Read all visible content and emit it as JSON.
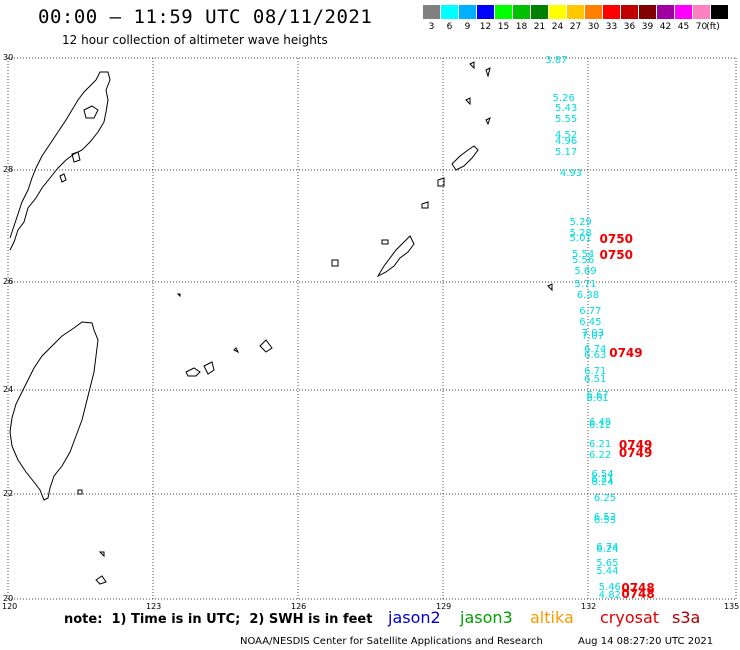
{
  "header": {
    "title": "00:00 – 11:59 UTC 08/11/2021",
    "subtitle": "12 hour collection of altimeter wave heights"
  },
  "legend": {
    "unit": "(ft)",
    "items": [
      {
        "label": "3",
        "color": "#808080"
      },
      {
        "label": "6",
        "color": "#00ffff"
      },
      {
        "label": "9",
        "color": "#00b0ff"
      },
      {
        "label": "12",
        "color": "#0000ff"
      },
      {
        "label": "15",
        "color": "#00ff00"
      },
      {
        "label": "18",
        "color": "#00c000"
      },
      {
        "label": "21",
        "color": "#008000"
      },
      {
        "label": "24",
        "color": "#ffff00"
      },
      {
        "label": "27",
        "color": "#ffc800"
      },
      {
        "label": "30",
        "color": "#ff8000"
      },
      {
        "label": "33",
        "color": "#ff0000"
      },
      {
        "label": "36",
        "color": "#c00000"
      },
      {
        "label": "39",
        "color": "#800000"
      },
      {
        "label": "42",
        "color": "#a000a0"
      },
      {
        "label": "45",
        "color": "#ff00ff"
      },
      {
        "label": "70",
        "color": "#ff80c0"
      },
      {
        "label": "",
        "color": "#000000"
      }
    ]
  },
  "axes": {
    "lat_ticks": [
      "30",
      "28",
      "26",
      "24",
      "22",
      "20"
    ],
    "lon_ticks": [
      "120",
      "123",
      "126",
      "129",
      "132",
      "135"
    ]
  },
  "observations": [
    {
      "v": "3.87",
      "lon": 131.4,
      "lat": 29.95
    },
    {
      "v": "5.26",
      "lon": 131.55,
      "lat": 29.25
    },
    {
      "v": "5.43",
      "lon": 131.6,
      "lat": 29.05
    },
    {
      "v": "5.55",
      "lon": 131.6,
      "lat": 28.85
    },
    {
      "v": "4.52",
      "lon": 131.6,
      "lat": 28.55
    },
    {
      "v": "4.96",
      "lon": 131.6,
      "lat": 28.45
    },
    {
      "v": "5.17",
      "lon": 131.6,
      "lat": 28.25
    },
    {
      "v": "4.93",
      "lon": 131.7,
      "lat": 27.85
    },
    {
      "v": "5.29",
      "lon": 131.9,
      "lat": 26.95
    },
    {
      "v": "5.28",
      "lon": 131.9,
      "lat": 26.75
    },
    {
      "v": "5.01",
      "lon": 131.9,
      "lat": 26.65
    },
    {
      "v": "5.54",
      "lon": 131.95,
      "lat": 26.35
    },
    {
      "v": "5.56",
      "lon": 131.95,
      "lat": 26.25
    },
    {
      "v": "5.69",
      "lon": 132.0,
      "lat": 26.05
    },
    {
      "v": "5.71",
      "lon": 132.0,
      "lat": 25.8
    },
    {
      "v": "6.38",
      "lon": 132.05,
      "lat": 25.6
    },
    {
      "v": "6.77",
      "lon": 132.1,
      "lat": 25.3
    },
    {
      "v": "6.45",
      "lon": 132.1,
      "lat": 25.1
    },
    {
      "v": "7.03",
      "lon": 132.15,
      "lat": 24.9
    },
    {
      "v": "7.07",
      "lon": 132.15,
      "lat": 24.85
    },
    {
      "v": "6.74",
      "lon": 132.2,
      "lat": 24.6
    },
    {
      "v": "6.63",
      "lon": 132.2,
      "lat": 24.5
    },
    {
      "v": "6.71",
      "lon": 132.2,
      "lat": 24.2
    },
    {
      "v": "6.51",
      "lon": 132.2,
      "lat": 24.05
    },
    {
      "v": "6.67",
      "lon": 132.25,
      "lat": 23.75
    },
    {
      "v": "6.61",
      "lon": 132.25,
      "lat": 23.7
    },
    {
      "v": "6.48",
      "lon": 132.3,
      "lat": 23.25
    },
    {
      "v": "6.12",
      "lon": 132.3,
      "lat": 23.2
    },
    {
      "v": "6.21",
      "lon": 132.3,
      "lat": 22.85
    },
    {
      "v": "6.22",
      "lon": 132.3,
      "lat": 22.65
    },
    {
      "v": "6.54",
      "lon": 132.35,
      "lat": 22.3
    },
    {
      "v": "6.21",
      "lon": 132.35,
      "lat": 22.2
    },
    {
      "v": "6.24",
      "lon": 132.35,
      "lat": 22.15
    },
    {
      "v": "6.25",
      "lon": 132.4,
      "lat": 21.85
    },
    {
      "v": "6.52",
      "lon": 132.4,
      "lat": 21.5
    },
    {
      "v": "6.53",
      "lon": 132.4,
      "lat": 21.45
    },
    {
      "v": "6.74",
      "lon": 132.45,
      "lat": 20.95
    },
    {
      "v": "6.24",
      "lon": 132.45,
      "lat": 20.9
    },
    {
      "v": "5.65",
      "lon": 132.45,
      "lat": 20.65
    },
    {
      "v": "5.44",
      "lon": 132.45,
      "lat": 20.5
    },
    {
      "v": "5.46",
      "lon": 132.5,
      "lat": 20.2
    },
    {
      "v": "4.82",
      "lon": 132.5,
      "lat": 20.05
    }
  ],
  "pass_times": [
    {
      "t": "0750",
      "lon": 132.6,
      "lat": 26.65
    },
    {
      "t": "0750",
      "lon": 132.6,
      "lat": 26.35
    },
    {
      "t": "0749",
      "lon": 132.8,
      "lat": 24.55
    },
    {
      "t": "0749",
      "lon": 133.0,
      "lat": 22.85
    },
    {
      "t": "0749",
      "lon": 133.0,
      "lat": 22.7
    },
    {
      "t": "0748",
      "lon": 133.05,
      "lat": 20.2
    },
    {
      "t": "0748",
      "lon": 133.05,
      "lat": 20.1
    }
  ],
  "footer": {
    "note": "note:  1) Time is in UTC;  2) SWH is in feet",
    "satellites": [
      {
        "name": "jason2",
        "color": "#0000cc"
      },
      {
        "name": "jason3",
        "color": "#00a000"
      },
      {
        "name": "altika",
        "color": "#ff9900"
      },
      {
        "name": "cryosat",
        "color": "#dd0000"
      },
      {
        "name": "s3a",
        "color": "#aa0000"
      }
    ],
    "credit": "NOAA/NESDIS Center for Satellite Applications and Research",
    "timestamp": "Aug 14 08:27:20 UTC 2021"
  }
}
